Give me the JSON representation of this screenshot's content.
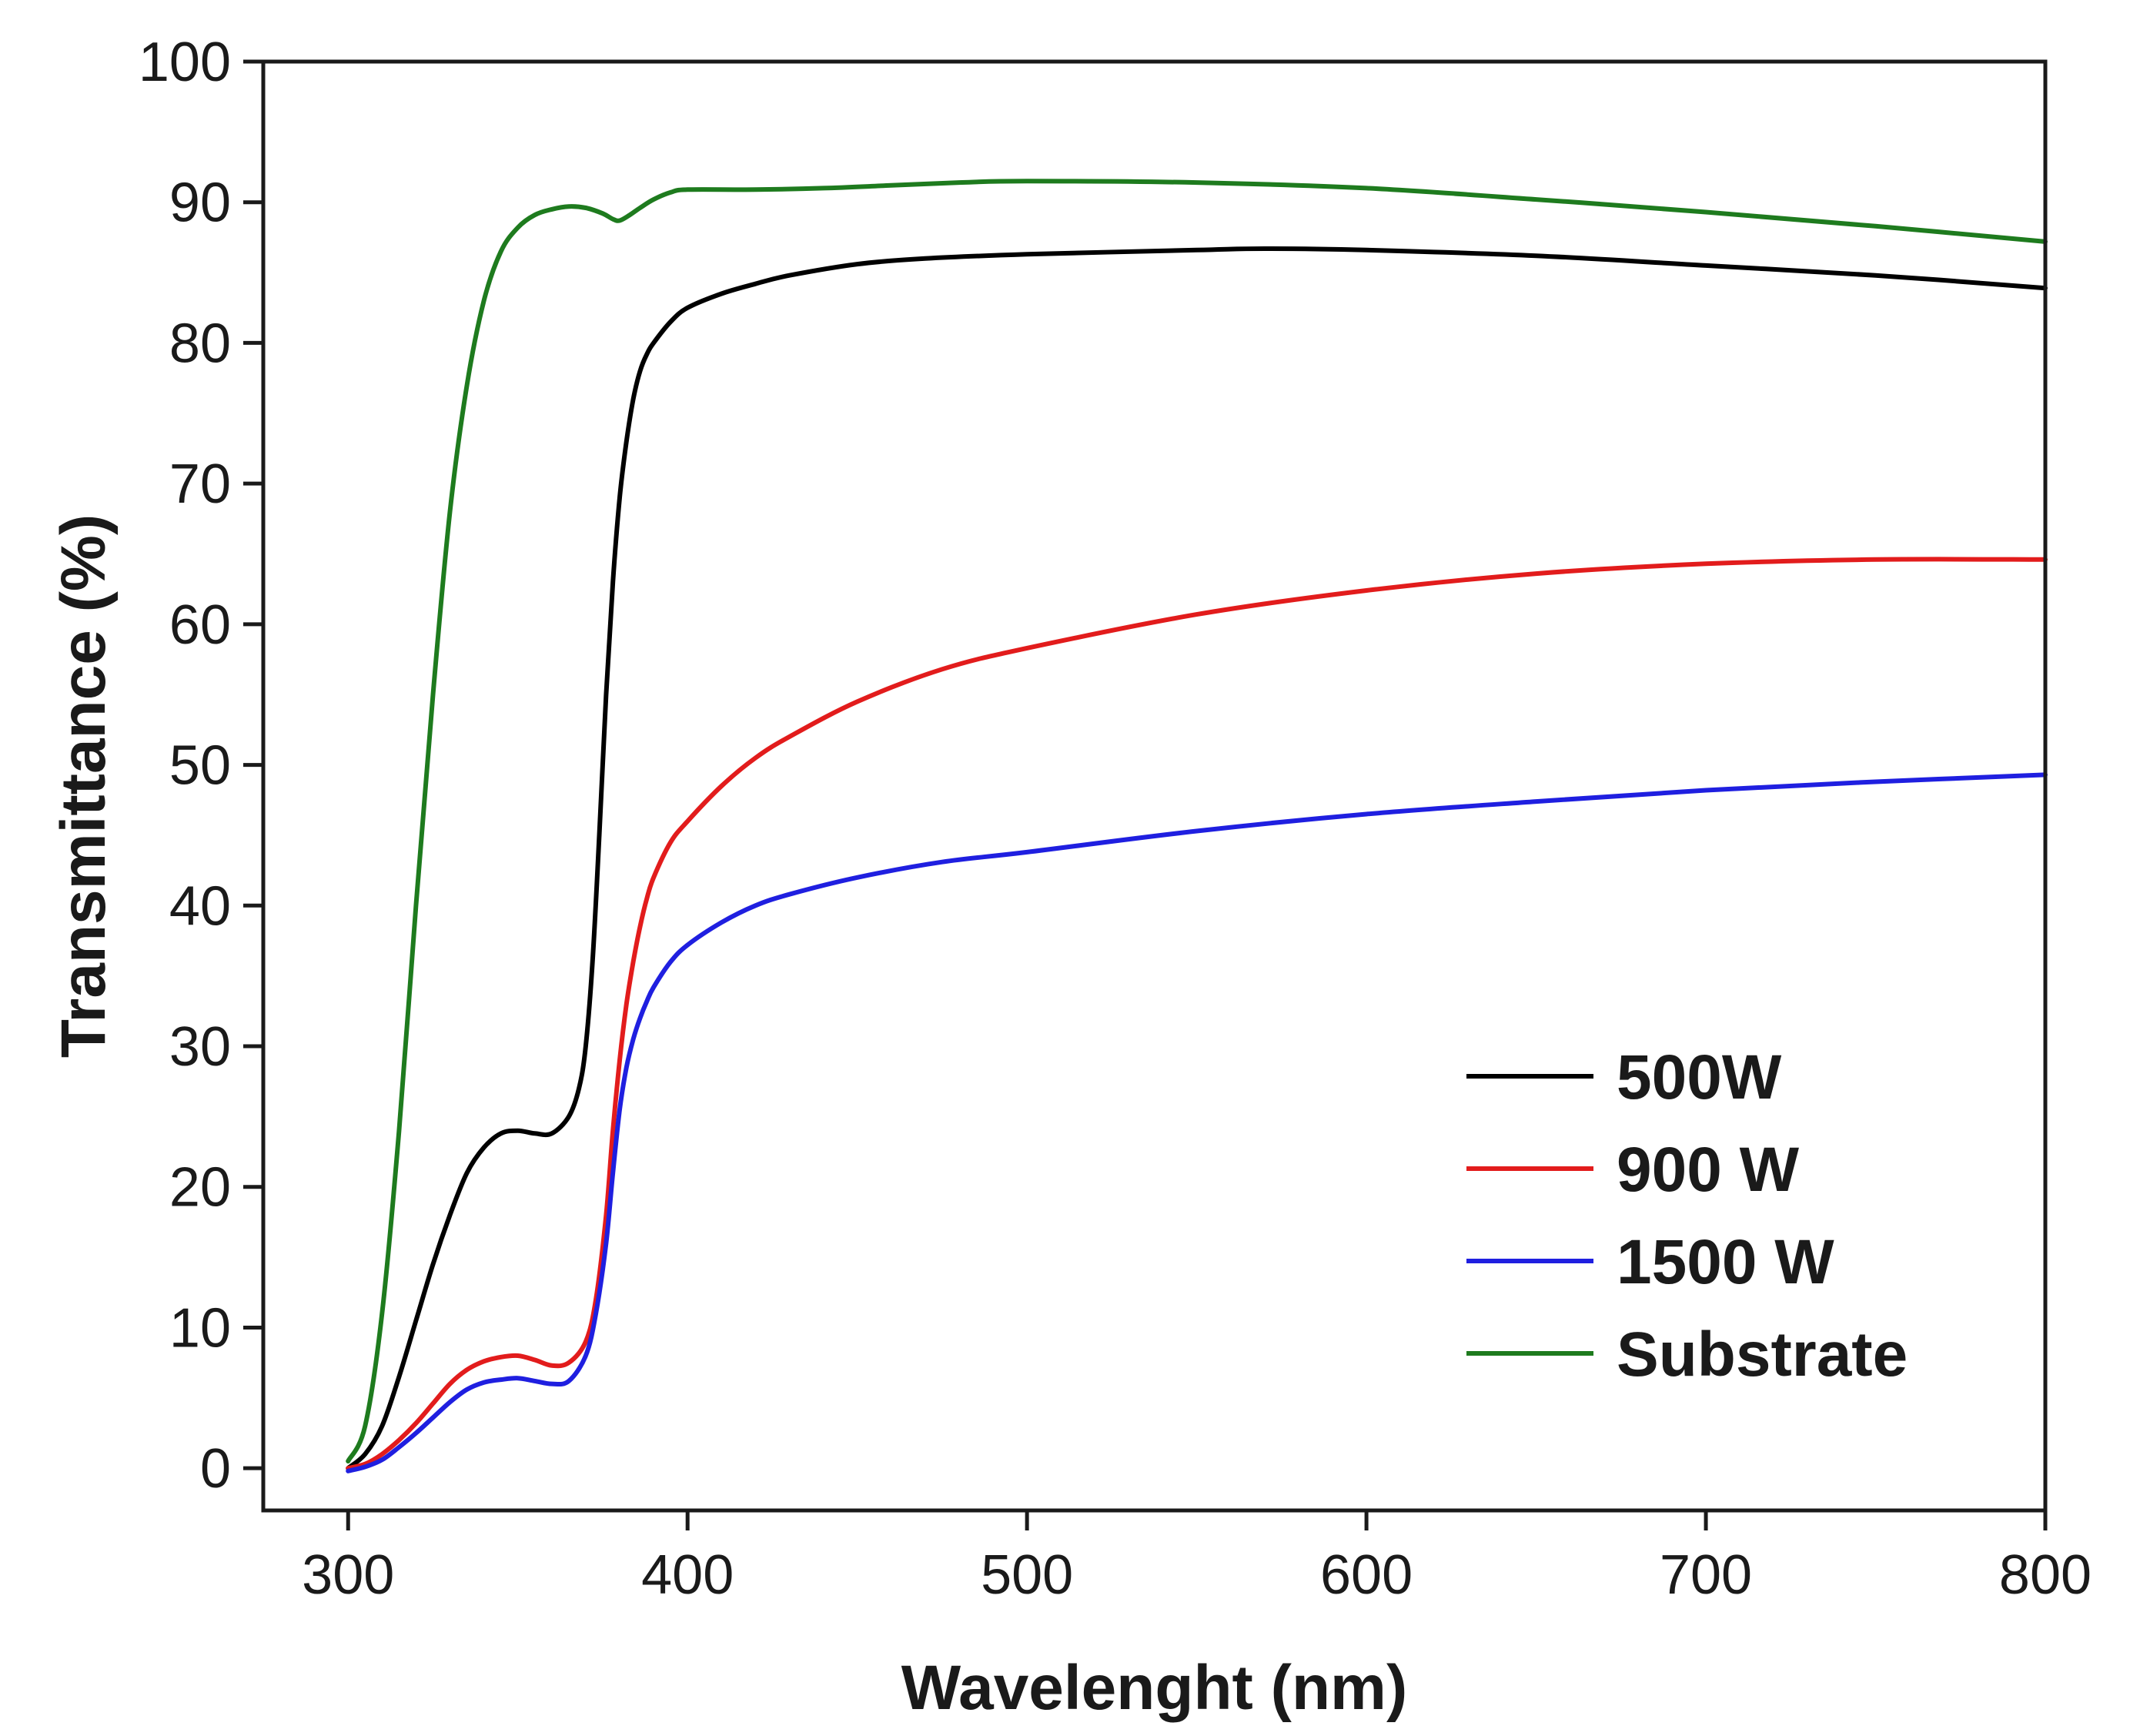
{
  "chart_data": {
    "type": "line",
    "title": "",
    "xlabel": "Wavelenght (nm)",
    "ylabel": "Transmittance (%)",
    "xlim": [
      275,
      800
    ],
    "ylim": [
      -3,
      100
    ],
    "xticks": [
      300,
      400,
      500,
      600,
      700,
      800
    ],
    "yticks": [
      0,
      10,
      20,
      30,
      40,
      50,
      60,
      70,
      80,
      90,
      100
    ],
    "grid": false,
    "legend_position": "bottom-right",
    "series": [
      {
        "name": "500W",
        "color": "#000000",
        "x": [
          300,
          305,
          310,
          315,
          320,
          325,
          330,
          335,
          340,
          345,
          350,
          355,
          360,
          365,
          368,
          370,
          372,
          374,
          376,
          378,
          380,
          382,
          384,
          386,
          388,
          390,
          395,
          400,
          410,
          420,
          430,
          450,
          470,
          500,
          550,
          570,
          600,
          650,
          700,
          750,
          800
        ],
        "y": [
          0,
          1,
          3,
          6.5,
          10.5,
          14.5,
          18,
          21,
          22.8,
          23.8,
          24,
          23.8,
          23.8,
          25,
          27,
          30,
          36,
          45,
          55,
          63,
          69,
          73,
          76,
          78,
          79.2,
          80,
          81.5,
          82.5,
          83.5,
          84.2,
          84.8,
          85.6,
          86,
          86.3,
          86.6,
          86.7,
          86.6,
          86.2,
          85.5,
          84.8,
          83.9
        ]
      },
      {
        "name": "900 W",
        "color": "#e21c1c",
        "x": [
          300,
          305,
          310,
          315,
          320,
          325,
          330,
          335,
          340,
          345,
          350,
          355,
          360,
          365,
          370,
          373,
          376,
          378,
          380,
          382,
          384,
          386,
          388,
          390,
          395,
          400,
          410,
          420,
          430,
          450,
          475,
          500,
          550,
          600,
          650,
          700,
          750,
          800
        ],
        "y": [
          0,
          0.3,
          1,
          2,
          3.2,
          4.6,
          6,
          7,
          7.6,
          7.9,
          8,
          7.7,
          7.3,
          7.5,
          9,
          12,
          18,
          24,
          29,
          33,
          36,
          38.5,
          40.5,
          42,
          44.5,
          46,
          48.5,
          50.5,
          52,
          54.5,
          56.8,
          58.3,
          60.7,
          62.4,
          63.6,
          64.3,
          64.6,
          64.6
        ]
      },
      {
        "name": "1500 W",
        "color": "#1f1fe0",
        "x": [
          300,
          305,
          310,
          315,
          320,
          325,
          330,
          335,
          340,
          345,
          350,
          355,
          360,
          365,
          370,
          373,
          376,
          378,
          380,
          382,
          384,
          386,
          388,
          390,
          395,
          400,
          410,
          420,
          430,
          450,
          475,
          500,
          550,
          600,
          650,
          700,
          750,
          800
        ],
        "y": [
          -0.2,
          0.1,
          0.6,
          1.5,
          2.5,
          3.6,
          4.7,
          5.6,
          6.1,
          6.3,
          6.4,
          6.2,
          6,
          6.2,
          8,
          11,
          16,
          21,
          25.5,
          28.5,
          30.5,
          32,
          33.2,
          34.2,
          36,
          37.2,
          38.8,
          40,
          40.8,
          42,
          43.1,
          43.8,
          45.3,
          46.5,
          47.4,
          48.2,
          48.8,
          49.3
        ]
      },
      {
        "name": "Substrate",
        "color": "#1e7b1e",
        "x": [
          300,
          305,
          310,
          315,
          320,
          325,
          330,
          335,
          340,
          345,
          350,
          355,
          360,
          365,
          370,
          375,
          378,
          380,
          383,
          386,
          390,
          395,
          400,
          420,
          440,
          460,
          480,
          500,
          550,
          600,
          650,
          700,
          750,
          800
        ],
        "y": [
          0.5,
          3,
          11,
          24,
          40,
          55,
          68,
          77,
          83,
          86.5,
          88.2,
          89.1,
          89.5,
          89.7,
          89.6,
          89.2,
          88.8,
          88.7,
          89.1,
          89.6,
          90.2,
          90.7,
          90.9,
          90.9,
          91,
          91.2,
          91.4,
          91.5,
          91.4,
          91,
          90.2,
          89.3,
          88.3,
          87.2
        ]
      }
    ]
  }
}
